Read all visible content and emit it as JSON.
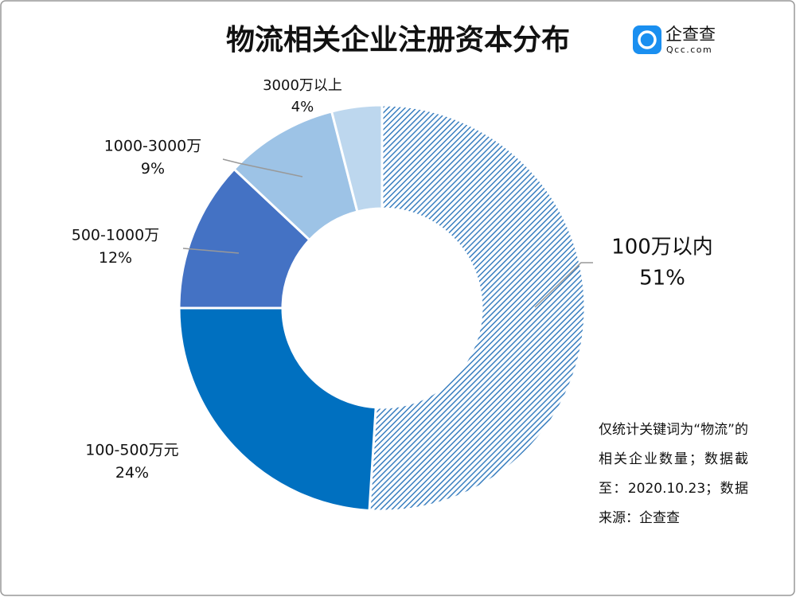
{
  "chart_data": {
    "type": "pie",
    "title": "物流相关企业注册资本分布",
    "categories": [
      "100万以内",
      "100-500万元",
      "500-1000万",
      "1000-3000万",
      "3000万以上"
    ],
    "values": [
      51,
      24,
      12,
      9,
      4
    ],
    "value_labels": [
      "51%",
      "24%",
      "12%",
      "9%",
      "4%"
    ],
    "colors": [
      "#3a7fc0",
      "#0070c0",
      "#4472c4",
      "#9dc3e6",
      "#bdd7ee"
    ],
    "hole": true
  },
  "logo": {
    "name": "企查查",
    "domain": "Qcc.com"
  },
  "note": "仅统计关键词为“物流”的相关企业数量；数据截至：2020.10.23；数据来源：企查查"
}
